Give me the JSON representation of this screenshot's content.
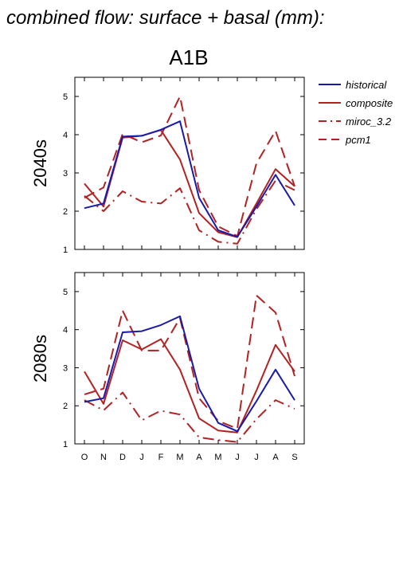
{
  "title": "combined flow: surface + basal (mm):",
  "scenario": "A1B",
  "legend": [
    {
      "name": "historical",
      "color": "#1a1aaa",
      "dash": "solid"
    },
    {
      "name": "composite",
      "color": "#b22222",
      "dash": "solid"
    },
    {
      "name": "miroc_3.2",
      "color": "#b22222",
      "dash": "dashdot"
    },
    {
      "name": "pcm1",
      "color": "#b22222",
      "dash": "dashed"
    }
  ],
  "chart_data": [
    {
      "type": "line",
      "row_label": "2040s",
      "categories": [
        "O",
        "N",
        "D",
        "J",
        "F",
        "M",
        "A",
        "M",
        "J",
        "J",
        "A",
        "S"
      ],
      "ylim": [
        1,
        5.5
      ],
      "yticks": [
        "1",
        "2",
        "3",
        "4",
        "5"
      ],
      "grid": false,
      "series": [
        {
          "name": "historical",
          "values": [
            2.08,
            2.2,
            3.95,
            3.97,
            4.13,
            4.35,
            2.35,
            1.5,
            1.33,
            2.12,
            2.95,
            2.15
          ]
        },
        {
          "name": "composite",
          "values": [
            2.72,
            2.12,
            3.92,
            3.97,
            4.12,
            3.35,
            1.95,
            1.45,
            1.32,
            2.2,
            3.1,
            2.65
          ]
        },
        {
          "name": "miroc_3.2",
          "values": [
            2.4,
            2.0,
            2.52,
            2.25,
            2.2,
            2.6,
            1.5,
            1.2,
            1.15,
            2.05,
            2.8,
            2.55
          ]
        },
        {
          "name": "pcm1",
          "values": [
            2.35,
            2.62,
            4.02,
            3.8,
            3.98,
            5.0,
            2.55,
            1.6,
            1.35,
            3.25,
            4.1,
            2.65
          ]
        }
      ]
    },
    {
      "type": "line",
      "row_label": "2080s",
      "categories": [
        "O",
        "N",
        "D",
        "J",
        "F",
        "M",
        "A",
        "M",
        "J",
        "J",
        "A",
        "S"
      ],
      "ylim": [
        1,
        5.5
      ],
      "yticks": [
        "1",
        "2",
        "3",
        "4",
        "5"
      ],
      "grid": false,
      "series": [
        {
          "name": "historical",
          "values": [
            2.1,
            2.2,
            3.93,
            3.96,
            4.12,
            4.35,
            2.45,
            1.55,
            1.33,
            2.12,
            2.95,
            2.15
          ]
        },
        {
          "name": "composite",
          "values": [
            2.9,
            2.05,
            3.72,
            3.48,
            3.75,
            2.95,
            1.67,
            1.35,
            1.3,
            2.4,
            3.6,
            2.9
          ]
        },
        {
          "name": "miroc_3.2",
          "values": [
            2.15,
            1.88,
            2.35,
            1.62,
            1.87,
            1.77,
            1.17,
            1.1,
            1.05,
            1.65,
            2.15,
            1.92
          ]
        },
        {
          "name": "pcm1",
          "values": [
            2.3,
            2.45,
            4.5,
            3.45,
            3.45,
            4.3,
            2.2,
            1.6,
            1.4,
            4.9,
            4.45,
            2.78
          ]
        }
      ]
    }
  ]
}
